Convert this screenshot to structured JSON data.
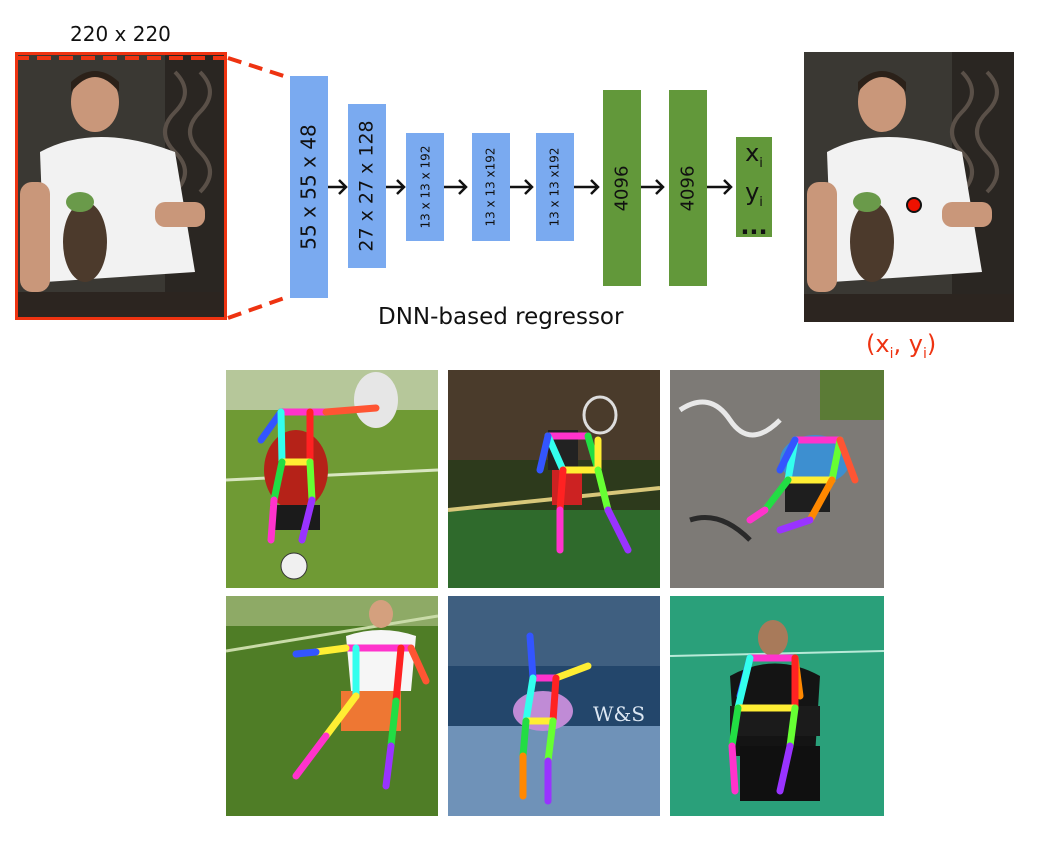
{
  "input": {
    "size_label": "220 x 220"
  },
  "network": {
    "layers": [
      {
        "label": "55 x 55 x 48",
        "kind": "conv"
      },
      {
        "label": "27 x 27 x 128",
        "kind": "conv"
      },
      {
        "label": "13 x 13 x 192",
        "kind": "conv"
      },
      {
        "label": "13 x 13 x192",
        "kind": "conv"
      },
      {
        "label": "13 x 13 x192",
        "kind": "conv"
      },
      {
        "label": "4096",
        "kind": "fc"
      },
      {
        "label": "4096",
        "kind": "fc"
      }
    ],
    "output_labels": {
      "x": "x",
      "x_sub": "i",
      "y": "y",
      "y_sub": "i",
      "ellipsis": "..."
    },
    "caption": "DNN-based regressor"
  },
  "output": {
    "coord_open": "(x",
    "coord_sub1": "i",
    "coord_mid": ", y",
    "coord_sub2": "i",
    "coord_close": ")"
  },
  "colors": {
    "conv": "#7aaaf0",
    "fc": "#62983a",
    "highlight": "#ee3311",
    "dot": "#ee1100"
  },
  "examples": [
    {
      "scene": "soccer-grass"
    },
    {
      "scene": "badminton-court"
    },
    {
      "scene": "graffiti-wall"
    },
    {
      "scene": "soccer-field"
    },
    {
      "scene": "tennis-court"
    },
    {
      "scene": "seated-green-court"
    }
  ]
}
